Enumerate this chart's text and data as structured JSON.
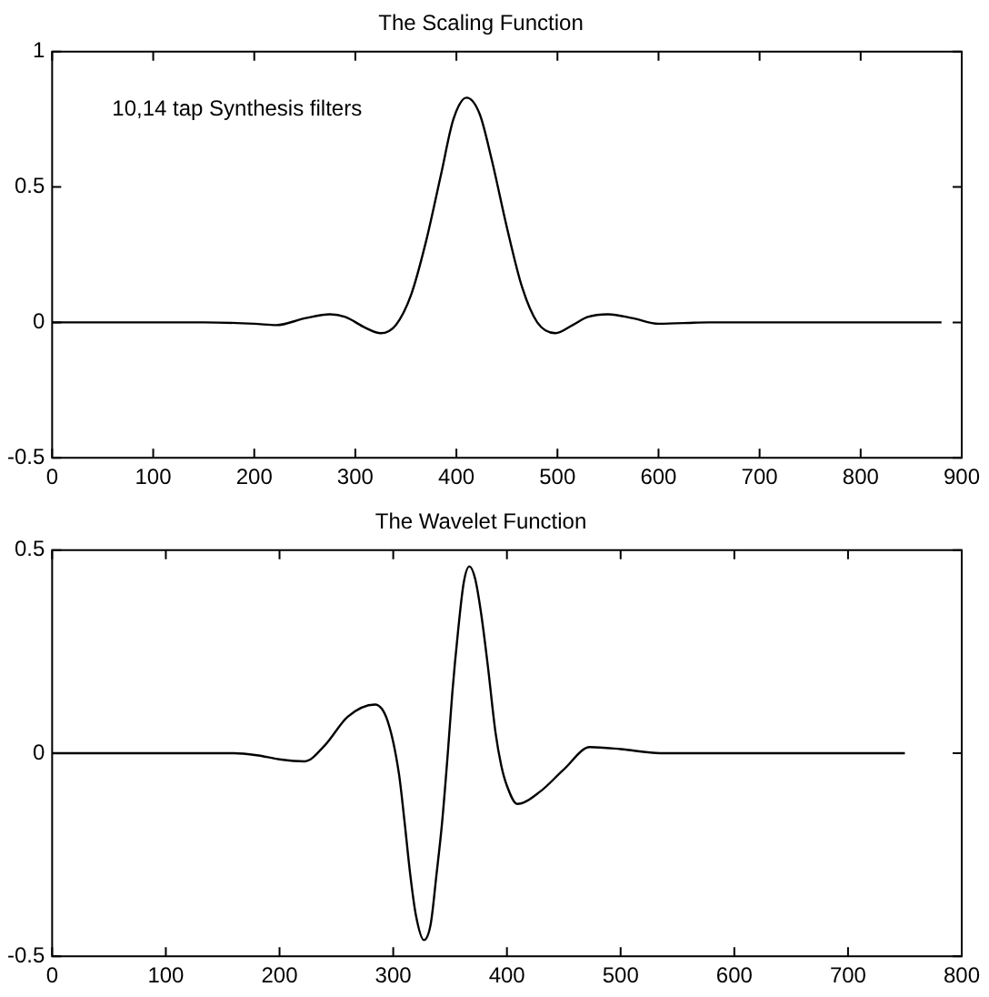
{
  "chart_data": [
    {
      "type": "line",
      "title": "The Scaling Function",
      "annotations": [
        "10,14 tap Synthesis filters"
      ],
      "x": [
        0,
        150,
        200,
        222,
        250,
        275,
        290,
        310,
        325,
        340,
        355,
        370,
        385,
        397,
        410,
        423,
        435,
        450,
        465,
        480,
        498,
        515,
        530,
        550,
        575,
        600,
        650,
        880
      ],
      "values": [
        0,
        0,
        -0.005,
        -0.01,
        0.015,
        0.03,
        0.02,
        -0.02,
        -0.04,
        -0.01,
        0.1,
        0.3,
        0.55,
        0.75,
        0.83,
        0.77,
        0.6,
        0.35,
        0.13,
        0,
        -0.04,
        -0.01,
        0.02,
        0.03,
        0.015,
        -0.005,
        0,
        0
      ],
      "color": "#000000",
      "xlim": [
        0,
        900
      ],
      "xticks": [
        0,
        100,
        200,
        300,
        400,
        500,
        600,
        700,
        800,
        900
      ],
      "ylim": [
        -0.5,
        1
      ],
      "yticks": [
        -0.5,
        0,
        0.5,
        1
      ]
    },
    {
      "type": "line",
      "title": "The Wavelet Function",
      "x": [
        0,
        160,
        180,
        200,
        222,
        240,
        260,
        284,
        295,
        305,
        310,
        315,
        320,
        327,
        333,
        338,
        343,
        348,
        352,
        357,
        362,
        367,
        372,
        377,
        383,
        390,
        395,
        400,
        409,
        429,
        450,
        473,
        500,
        535,
        750
      ],
      "values": [
        0,
        0,
        -0.005,
        -0.015,
        -0.02,
        0.02,
        0.09,
        0.12,
        0.08,
        -0.05,
        -0.17,
        -0.3,
        -0.4,
        -0.46,
        -0.42,
        -0.3,
        -0.17,
        0,
        0.15,
        0.3,
        0.42,
        0.46,
        0.43,
        0.35,
        0.22,
        0.05,
        -0.03,
        -0.08,
        -0.125,
        -0.095,
        -0.04,
        0.015,
        0.01,
        0,
        0
      ],
      "color": "#000000",
      "xlim": [
        0,
        800
      ],
      "xticks": [
        0,
        100,
        200,
        300,
        400,
        500,
        600,
        700,
        800
      ],
      "ylim": [
        -0.5,
        0.5
      ],
      "yticks": [
        -0.5,
        0,
        0.5
      ]
    }
  ]
}
